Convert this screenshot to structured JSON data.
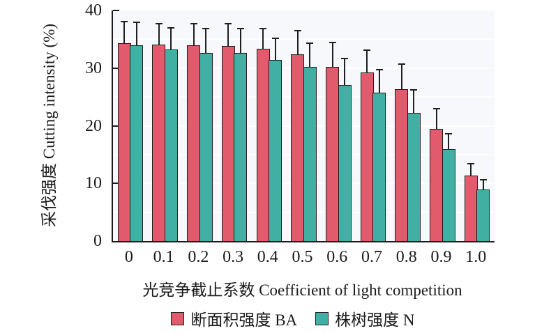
{
  "chart_data": {
    "type": "bar",
    "title": "",
    "xlabel": "光竞争截止系数 Coefficient of light competition",
    "ylabel": "采伐强度 Cutting intensity (%)",
    "categories": [
      "0",
      "0.1",
      "0.2",
      "0.3",
      "0.4",
      "0.5",
      "0.6",
      "0.7",
      "0.8",
      "0.9",
      "1.0"
    ],
    "y_ticks": [
      0,
      10,
      20,
      30,
      40
    ],
    "ylim": [
      0,
      40
    ],
    "grid": "faint white horizontal gridlines every 5 units on pale panel",
    "legend_position": "bottom",
    "error_bars": "upper only, black caps",
    "series": [
      {
        "name": "断面积强度 BA",
        "color": "#e15b6c",
        "values": [
          34.3,
          34.1,
          33.9,
          33.8,
          33.3,
          32.4,
          30.2,
          29.2,
          26.3,
          19.4,
          11.4
        ],
        "errors_upper": [
          4.0,
          3.8,
          4.0,
          4.1,
          3.8,
          4.3,
          4.5,
          4.2,
          4.6,
          3.8,
          2.3
        ]
      },
      {
        "name": "株树强度 N",
        "color": "#42afa5",
        "values": [
          33.9,
          33.2,
          32.6,
          32.6,
          31.4,
          30.2,
          27.1,
          25.7,
          22.2,
          15.9,
          9.0
        ],
        "errors_upper": [
          4.3,
          4.0,
          4.5,
          4.5,
          4.0,
          4.4,
          4.8,
          4.3,
          4.3,
          3.0,
          1.9
        ]
      }
    ],
    "style": {
      "bar_outline": "#1f1f1f",
      "panel_bg": "#f6f8fb",
      "axis_color": "#1a1a1a"
    }
  }
}
